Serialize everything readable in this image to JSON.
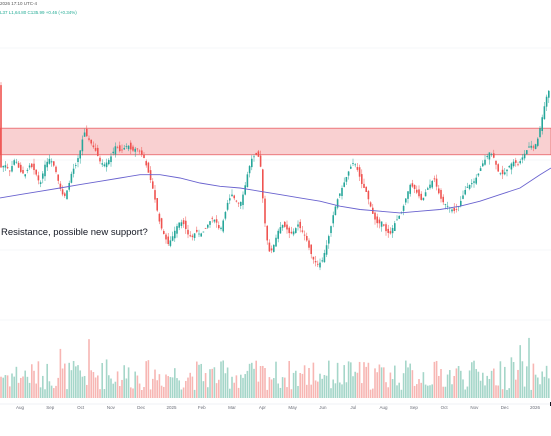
{
  "header": {
    "line1": "2026 17:10 UTC-4",
    "line2": "L37 L1,64.80 C135.99 +0.46 (+0.34%)"
  },
  "annotation": "Resistance, possible new support?",
  "colors": {
    "up": "#26a69a",
    "down": "#ef5350",
    "vol_up": "#a5d6c9",
    "vol_down": "#f7b6b3",
    "zone_fill": "#f9d0d1",
    "zone_border": "#e96066",
    "ma": "#6a63cf",
    "grid": "#eef0f4",
    "axis_text": "#6a6d78"
  },
  "chart_data": {
    "type": "candlestick",
    "title": "",
    "xlabel": "",
    "ylabel": "",
    "x_tick_labels": [
      "Aug",
      "Sep",
      "Oct",
      "Nov",
      "Dec",
      "2025",
      "Feb",
      "Mar",
      "Apr",
      "May",
      "Jun",
      "Jul",
      "Aug",
      "Sep",
      "Oct",
      "Nov",
      "Dec",
      "2026"
    ],
    "ylim": [
      0,
      100
    ],
    "grid": true,
    "resistance_zone": [
      57,
      65
    ],
    "price_path": [
      [
        0,
        53
      ],
      [
        5,
        54
      ],
      [
        10,
        52
      ],
      [
        15,
        56
      ],
      [
        20,
        52
      ],
      [
        25,
        51
      ],
      [
        30,
        54
      ],
      [
        35,
        52
      ],
      [
        40,
        48
      ],
      [
        45,
        54
      ],
      [
        50,
        56
      ],
      [
        55,
        53
      ],
      [
        60,
        47
      ],
      [
        64,
        44
      ],
      [
        68,
        47
      ],
      [
        72,
        52
      ],
      [
        76,
        54
      ],
      [
        80,
        58
      ],
      [
        84,
        64
      ],
      [
        88,
        62
      ],
      [
        92,
        60
      ],
      [
        96,
        58
      ],
      [
        100,
        55
      ],
      [
        104,
        54
      ],
      [
        108,
        55
      ],
      [
        112,
        57
      ],
      [
        116,
        60
      ],
      [
        120,
        58
      ],
      [
        124,
        59
      ],
      [
        128,
        60
      ],
      [
        132,
        58
      ],
      [
        136,
        59
      ],
      [
        140,
        58
      ],
      [
        144,
        56
      ],
      [
        148,
        52
      ],
      [
        152,
        48
      ],
      [
        156,
        42
      ],
      [
        160,
        36
      ],
      [
        164,
        33
      ],
      [
        168,
        30
      ],
      [
        172,
        32
      ],
      [
        176,
        35
      ],
      [
        180,
        37
      ],
      [
        184,
        36
      ],
      [
        188,
        33
      ],
      [
        192,
        32
      ],
      [
        196,
        34
      ],
      [
        200,
        33
      ],
      [
        204,
        34
      ],
      [
        208,
        36
      ],
      [
        212,
        38
      ],
      [
        216,
        37
      ],
      [
        220,
        34
      ],
      [
        224,
        38
      ],
      [
        228,
        43
      ],
      [
        232,
        45
      ],
      [
        236,
        43
      ],
      [
        240,
        42
      ],
      [
        244,
        46
      ],
      [
        248,
        52
      ],
      [
        252,
        56
      ],
      [
        256,
        57
      ],
      [
        260,
        56
      ],
      [
        263,
        43
      ],
      [
        266,
        33
      ],
      [
        270,
        27
      ],
      [
        274,
        30
      ],
      [
        278,
        34
      ],
      [
        282,
        36
      ],
      [
        286,
        35
      ],
      [
        290,
        33
      ],
      [
        294,
        34
      ],
      [
        298,
        36
      ],
      [
        302,
        34
      ],
      [
        306,
        32
      ],
      [
        310,
        28
      ],
      [
        314,
        25
      ],
      [
        318,
        24
      ],
      [
        322,
        25
      ],
      [
        326,
        29
      ],
      [
        330,
        34
      ],
      [
        334,
        40
      ],
      [
        338,
        44
      ],
      [
        342,
        47
      ],
      [
        346,
        50
      ],
      [
        350,
        53
      ],
      [
        354,
        55
      ],
      [
        358,
        52
      ],
      [
        362,
        48
      ],
      [
        366,
        46
      ],
      [
        370,
        42
      ],
      [
        374,
        38
      ],
      [
        378,
        36
      ],
      [
        382,
        37
      ],
      [
        386,
        34
      ],
      [
        390,
        33
      ],
      [
        394,
        36
      ],
      [
        398,
        38
      ],
      [
        402,
        40
      ],
      [
        406,
        44
      ],
      [
        410,
        48
      ],
      [
        414,
        47
      ],
      [
        418,
        45
      ],
      [
        422,
        43
      ],
      [
        426,
        46
      ],
      [
        430,
        48
      ],
      [
        434,
        50
      ],
      [
        438,
        46
      ],
      [
        442,
        43
      ],
      [
        446,
        42
      ],
      [
        450,
        41
      ],
      [
        454,
        40
      ],
      [
        458,
        41
      ],
      [
        462,
        44
      ],
      [
        466,
        47
      ],
      [
        470,
        48
      ],
      [
        474,
        49
      ],
      [
        478,
        51
      ],
      [
        482,
        54
      ],
      [
        486,
        56
      ],
      [
        490,
        58
      ],
      [
        494,
        56
      ],
      [
        498,
        52
      ],
      [
        502,
        51
      ],
      [
        506,
        52
      ],
      [
        510,
        54
      ],
      [
        514,
        55
      ],
      [
        518,
        54
      ],
      [
        522,
        56
      ],
      [
        526,
        58
      ],
      [
        530,
        60
      ],
      [
        534,
        59
      ],
      [
        538,
        62
      ],
      [
        542,
        68
      ],
      [
        546,
        74
      ],
      [
        551,
        78
      ]
    ],
    "moving_average": [
      [
        0,
        44
      ],
      [
        20,
        45
      ],
      [
        40,
        46
      ],
      [
        60,
        47
      ],
      [
        80,
        48
      ],
      [
        100,
        49
      ],
      [
        120,
        50
      ],
      [
        140,
        51
      ],
      [
        160,
        51
      ],
      [
        180,
        50
      ],
      [
        200,
        48.5
      ],
      [
        220,
        47.5
      ],
      [
        240,
        47
      ],
      [
        260,
        46
      ],
      [
        280,
        45
      ],
      [
        300,
        44
      ],
      [
        320,
        43
      ],
      [
        340,
        41.5
      ],
      [
        360,
        40.5
      ],
      [
        380,
        40
      ],
      [
        400,
        39.5
      ],
      [
        420,
        40
      ],
      [
        440,
        40.5
      ],
      [
        460,
        41.5
      ],
      [
        480,
        43
      ],
      [
        500,
        45
      ],
      [
        520,
        47
      ],
      [
        540,
        51
      ],
      [
        551,
        53
      ]
    ]
  }
}
